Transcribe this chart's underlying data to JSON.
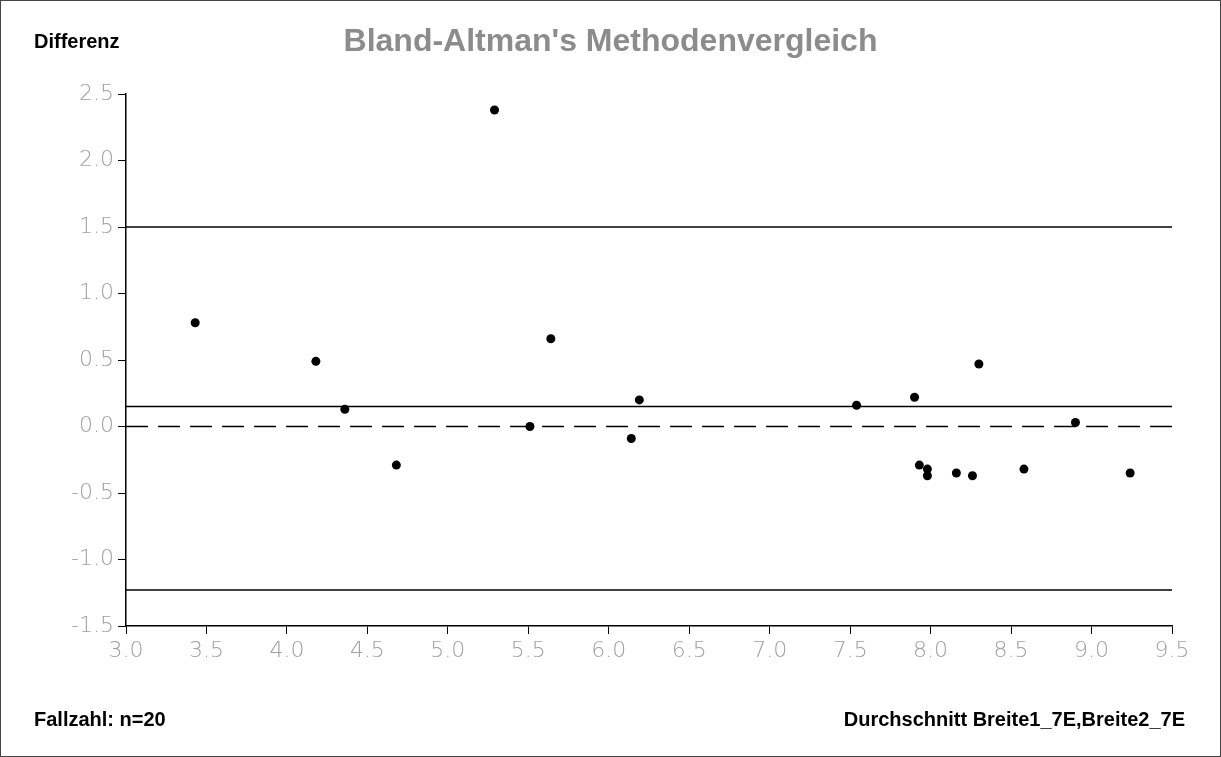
{
  "chart_data": {
    "type": "scatter",
    "title": "Bland-Altman's Methodenvergleich",
    "ylabel": "Differenz",
    "xlabel": "Durchschnitt Breite1_7E,Breite2_7E",
    "annotations": [
      "Fallzahl: n=20"
    ],
    "x": [
      3.43,
      4.18,
      4.36,
      4.68,
      5.29,
      5.51,
      5.64,
      6.14,
      6.19,
      7.54,
      7.9,
      7.93,
      7.98,
      7.98,
      8.16,
      8.26,
      8.3,
      8.58,
      8.9,
      9.24
    ],
    "series": [
      {
        "color": "#000000",
        "values": [
          0.78,
          0.49,
          0.13,
          -0.29,
          2.38,
          0.0,
          0.66,
          -0.09,
          0.2,
          0.16,
          0.22,
          -0.29,
          -0.32,
          -0.37,
          -0.35,
          -0.37,
          0.47,
          -0.32,
          0.03,
          -0.35
        ]
      }
    ],
    "marker": "circle",
    "grid": false,
    "legend": false,
    "xlim": [
      3.0,
      9.5
    ],
    "xticks": [
      {
        "value": 3.0,
        "label": "3.0"
      },
      {
        "value": 3.5,
        "label": "3.5"
      },
      {
        "value": 4.0,
        "label": "4.0"
      },
      {
        "value": 4.5,
        "label": "4.5"
      },
      {
        "value": 5.0,
        "label": "5.0"
      },
      {
        "value": 5.5,
        "label": "5.5"
      },
      {
        "value": 6.0,
        "label": "6.0"
      },
      {
        "value": 6.5,
        "label": "6.5"
      },
      {
        "value": 7.0,
        "label": "7.0"
      },
      {
        "value": 7.5,
        "label": "7.5"
      },
      {
        "value": 8.0,
        "label": "8.0"
      },
      {
        "value": 8.5,
        "label": "8.5"
      },
      {
        "value": 9.0,
        "label": "9.0"
      },
      {
        "value": 9.5,
        "label": "9.5"
      }
    ],
    "ylim": [
      -1.5,
      2.5
    ],
    "yticks": [
      {
        "value": -1.5,
        "label": "-1.5"
      },
      {
        "value": -1.0,
        "label": "-1.0"
      },
      {
        "value": -0.5,
        "label": "-0.5"
      },
      {
        "value": 0.0,
        "label": "0.0"
      },
      {
        "value": 0.5,
        "label": "0.5"
      },
      {
        "value": 1.0,
        "label": "1.0"
      },
      {
        "value": 1.5,
        "label": "1.5"
      },
      {
        "value": 2.0,
        "label": "2.0"
      },
      {
        "value": 2.5,
        "label": "2.5"
      }
    ],
    "ref_lines": [
      {
        "axis": "y",
        "value": 1.5,
        "color": "#000000",
        "line_style": "solid"
      },
      {
        "axis": "y",
        "value": 0.15,
        "color": "#000000",
        "line_style": "solid"
      },
      {
        "axis": "y",
        "value": 0,
        "color": "#000000",
        "line_style": "dashed"
      },
      {
        "axis": "y",
        "value": -1.23,
        "color": "#000000",
        "line_style": "solid"
      }
    ]
  }
}
